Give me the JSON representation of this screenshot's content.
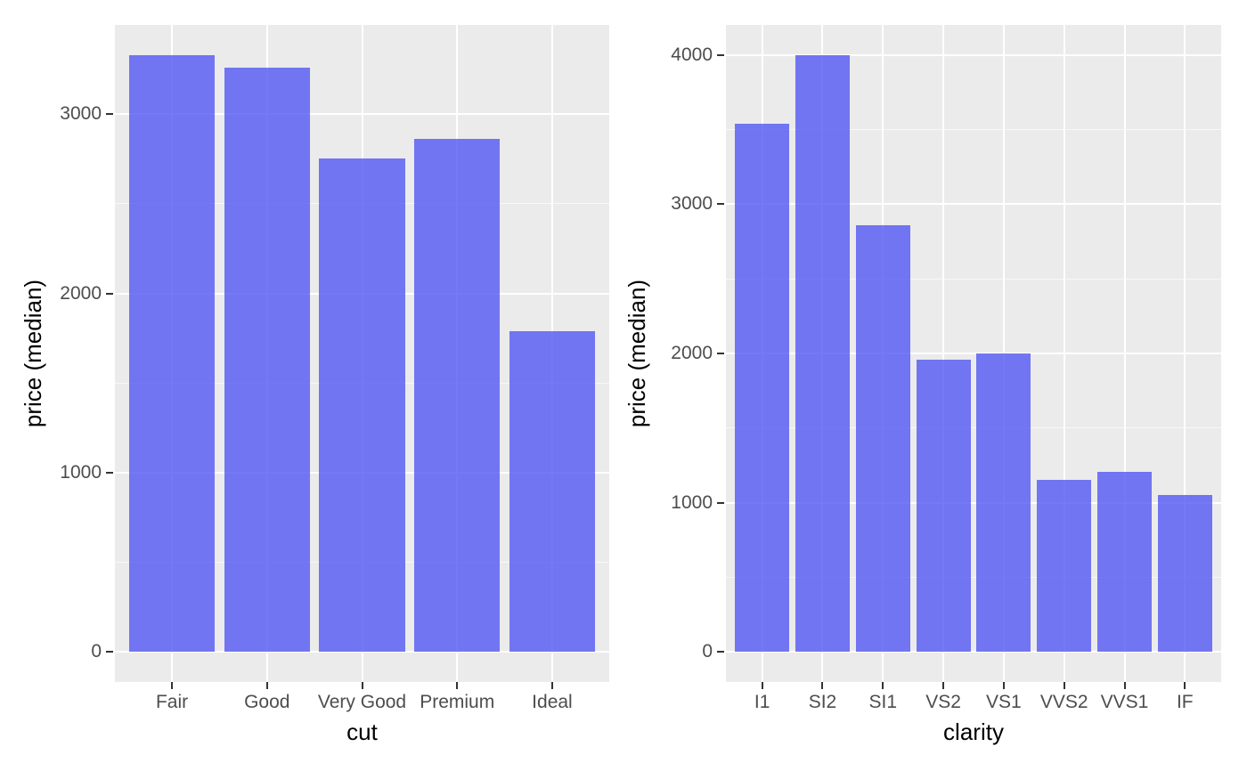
{
  "figure": {
    "background": "#ffffff",
    "panel_background": "#ebebeb",
    "grid_major_color": "#ffffff",
    "grid_minor_color": "#ffffff",
    "bar_fill": "rgba(82,87,242,0.8)",
    "tick_mark_color": "#333333",
    "tick_label_color": "#4d4d4d",
    "axis_title_color": "#000000"
  },
  "chart_data": [
    {
      "type": "bar",
      "title": "",
      "xlabel": "cut",
      "ylabel": "price (median)",
      "categories": [
        "Fair",
        "Good",
        "Very Good",
        "Premium",
        "Ideal"
      ],
      "values": [
        3330,
        3260,
        2750,
        2860,
        1790
      ],
      "y_ticks": [
        0,
        1000,
        2000,
        3000
      ],
      "minor_step": 500,
      "ylim": [
        -166.5,
        3496.5
      ],
      "bar_width_fraction": 0.9,
      "grid": true,
      "legend": false
    },
    {
      "type": "bar",
      "title": "",
      "xlabel": "clarity",
      "ylabel": "price (median)",
      "categories": [
        "I1",
        "SI2",
        "SI1",
        "VS2",
        "VS1",
        "VVS2",
        "VVS1",
        "IF"
      ],
      "values": [
        3540,
        4000,
        2860,
        1960,
        2000,
        1155,
        1210,
        1050
      ],
      "y_ticks": [
        0,
        1000,
        2000,
        3000,
        4000
      ],
      "minor_step": 500,
      "ylim": [
        -200,
        4200
      ],
      "bar_width_fraction": 0.9,
      "grid": true,
      "legend": false
    }
  ]
}
